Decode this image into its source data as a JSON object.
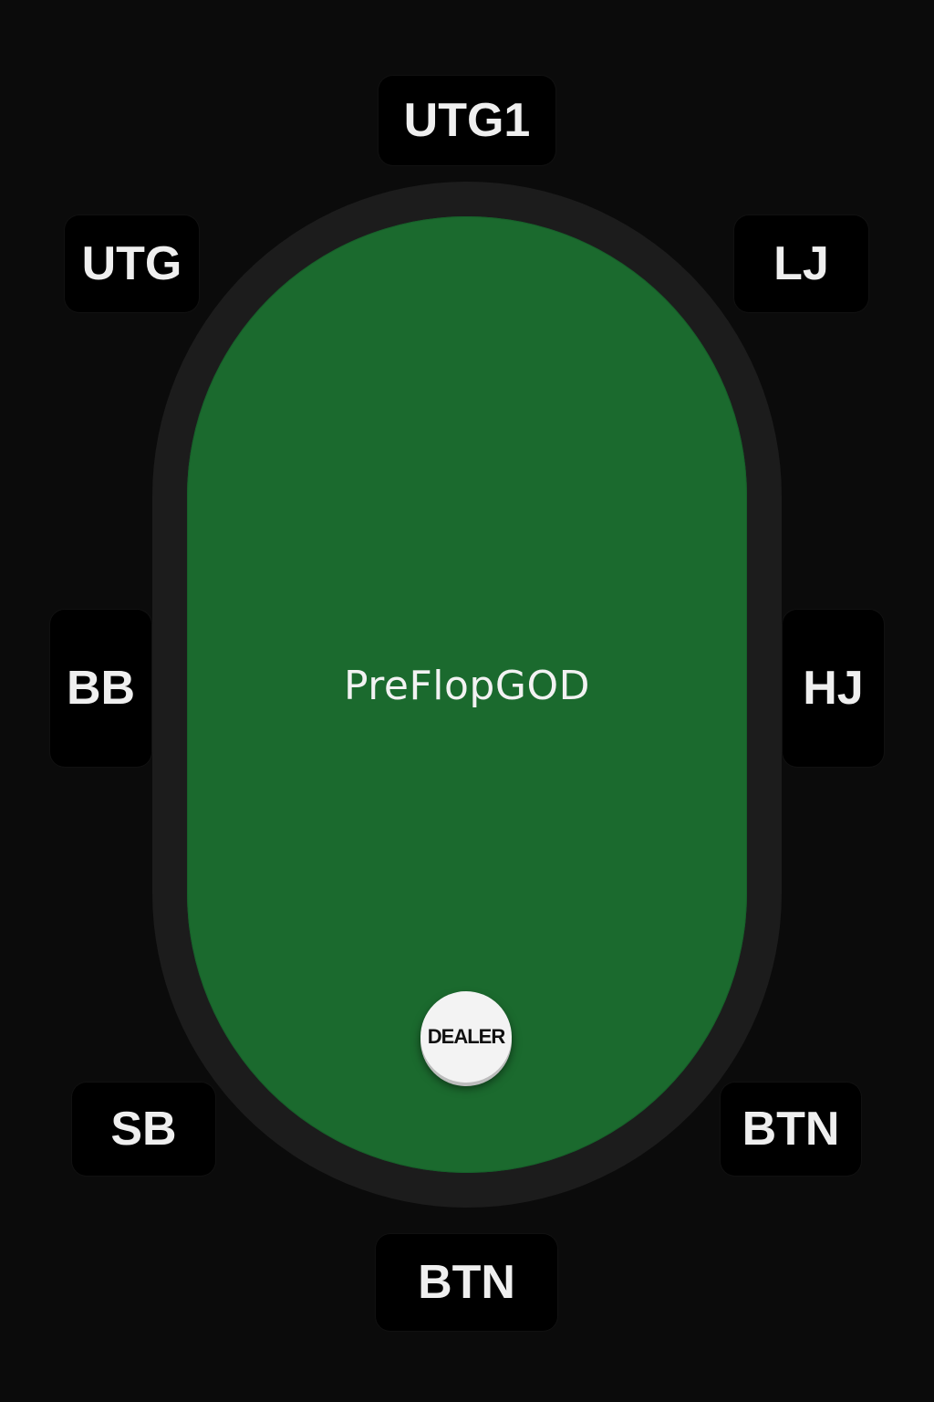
{
  "table": {
    "brand": "PreFlopGOD",
    "dealer_label": "DEALER",
    "felt_color": "#1b6a2e",
    "rail_color": "#1c1c1c",
    "background_color": "#0b0b0b"
  },
  "seats": {
    "utg1": "UTG1",
    "utg": "UTG",
    "lj": "LJ",
    "bb": "BB",
    "hj": "HJ",
    "sb": "SB",
    "btn_right": "BTN",
    "btn_bottom": "BTN"
  }
}
